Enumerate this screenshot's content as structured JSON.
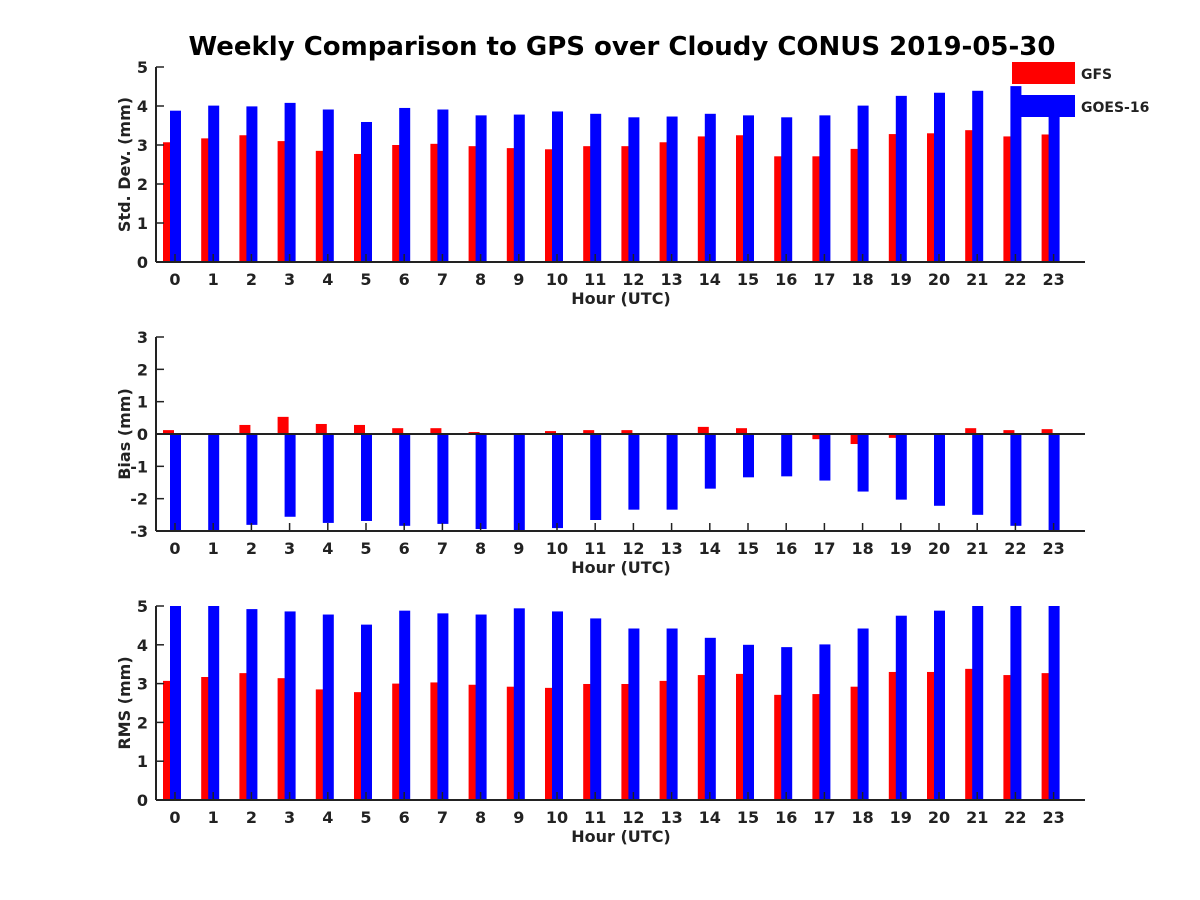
{
  "title": "Weekly Comparison to GPS over Cloudy CONUS 2019-05-30",
  "colors": {
    "GFS": "#ff0000",
    "GOES-16": "#0000ff"
  },
  "chart_data": [
    {
      "type": "bar",
      "ylabel": "Std. Dev. (mm)",
      "xlabel": "Hour (UTC)",
      "categories": [
        "0",
        "1",
        "2",
        "3",
        "4",
        "5",
        "6",
        "7",
        "8",
        "9",
        "10",
        "11",
        "12",
        "13",
        "14",
        "15",
        "16",
        "17",
        "18",
        "19",
        "20",
        "21",
        "22",
        "23"
      ],
      "ylim": [
        0,
        5
      ],
      "yticks": [
        "0",
        "1",
        "2",
        "3",
        "4",
        "5"
      ],
      "legend": {
        "position": "top-right",
        "entries": [
          "GFS",
          "GOES-16"
        ]
      },
      "series": [
        {
          "name": "GFS",
          "values": [
            3.07,
            3.17,
            3.25,
            3.1,
            2.85,
            2.77,
            3.0,
            3.03,
            2.97,
            2.92,
            2.89,
            2.97,
            2.97,
            3.07,
            3.22,
            3.25,
            2.71,
            2.71,
            2.9,
            3.28,
            3.3,
            3.38,
            3.22,
            3.27
          ]
        },
        {
          "name": "GOES-16",
          "values": [
            3.88,
            4.01,
            3.99,
            4.08,
            3.91,
            3.59,
            3.95,
            3.91,
            3.76,
            3.78,
            3.86,
            3.8,
            3.71,
            3.73,
            3.8,
            3.76,
            3.71,
            3.76,
            4.01,
            4.26,
            4.34,
            4.39,
            4.51,
            3.76
          ]
        }
      ]
    },
    {
      "type": "bar",
      "ylabel": "Bias (mm)",
      "xlabel": "Hour (UTC)",
      "categories": [
        "0",
        "1",
        "2",
        "3",
        "4",
        "5",
        "6",
        "7",
        "8",
        "9",
        "10",
        "11",
        "12",
        "13",
        "14",
        "15",
        "16",
        "17",
        "18",
        "19",
        "20",
        "21",
        "22",
        "23"
      ],
      "ylim": [
        -3,
        3
      ],
      "yticks": [
        "-3",
        "-2",
        "-1",
        "0",
        "1",
        "2",
        "3"
      ],
      "series": [
        {
          "name": "GFS",
          "values": [
            0.12,
            0.03,
            0.28,
            0.53,
            0.31,
            0.28,
            0.18,
            0.18,
            0.06,
            -0.03,
            0.09,
            0.12,
            0.12,
            0.03,
            0.22,
            0.18,
            0.0,
            -0.16,
            -0.31,
            -0.12,
            0.0,
            0.18,
            0.12,
            0.15
          ]
        },
        {
          "name": "GOES-16",
          "values": [
            -3.0,
            -3.0,
            -2.81,
            -2.56,
            -2.75,
            -2.69,
            -2.84,
            -2.78,
            -2.94,
            -3.0,
            -2.91,
            -2.66,
            -2.34,
            -2.34,
            -1.69,
            -1.34,
            -1.31,
            -1.44,
            -1.78,
            -2.03,
            -2.22,
            -2.5,
            -2.84,
            -3.0
          ]
        }
      ]
    },
    {
      "type": "bar",
      "ylabel": "RMS (mm)",
      "xlabel": "Hour (UTC)",
      "categories": [
        "0",
        "1",
        "2",
        "3",
        "4",
        "5",
        "6",
        "7",
        "8",
        "9",
        "10",
        "11",
        "12",
        "13",
        "14",
        "15",
        "16",
        "17",
        "18",
        "19",
        "20",
        "21",
        "22",
        "23"
      ],
      "ylim": [
        0,
        5
      ],
      "yticks": [
        "0",
        "1",
        "2",
        "3",
        "4",
        "5"
      ],
      "series": [
        {
          "name": "GFS",
          "values": [
            3.07,
            3.17,
            3.27,
            3.14,
            2.85,
            2.78,
            3.0,
            3.03,
            2.97,
            2.92,
            2.89,
            2.99,
            2.99,
            3.07,
            3.22,
            3.25,
            2.71,
            2.73,
            2.92,
            3.3,
            3.3,
            3.38,
            3.22,
            3.27
          ]
        },
        {
          "name": "GOES-16",
          "values": [
            5.0,
            5.0,
            4.92,
            4.86,
            4.78,
            4.52,
            4.88,
            4.81,
            4.78,
            4.94,
            4.86,
            4.68,
            4.42,
            4.42,
            4.18,
            4.0,
            3.94,
            4.01,
            4.42,
            4.75,
            4.88,
            5.0,
            5.0,
            5.0
          ]
        }
      ]
    }
  ]
}
